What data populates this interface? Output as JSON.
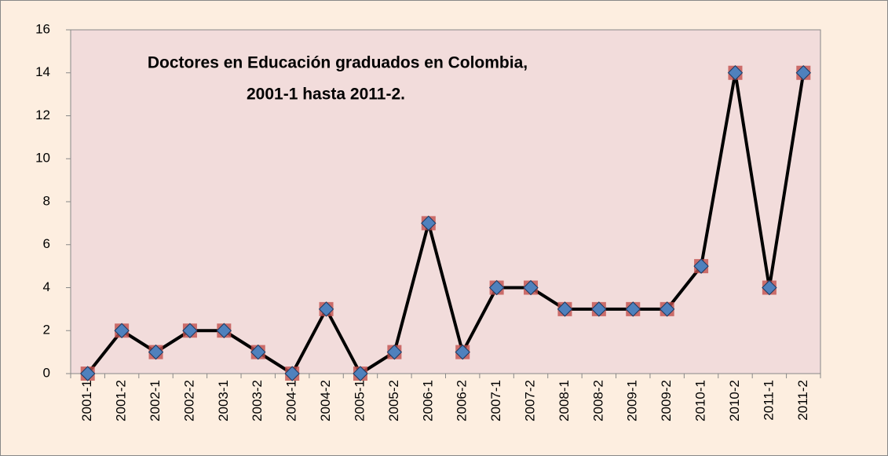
{
  "chart_data": {
    "type": "line",
    "title_lines": [
      "Doctores en Educación graduados en Colombia,",
      "2001-1 hasta 2011-2."
    ],
    "categories": [
      "2001-1",
      "2001-2",
      "2002-1",
      "2002-2",
      "2003-1",
      "2003-2",
      "2004-1",
      "2004-2",
      "2005-1",
      "2005-2",
      "2006-1",
      "2006-2",
      "2007-1",
      "2007-2",
      "2008-1",
      "2008-2",
      "2009-1",
      "2009-2",
      "2010-1",
      "2010-2",
      "2011-1",
      "2011-2"
    ],
    "values": [
      0,
      2,
      1,
      2,
      2,
      1,
      0,
      3,
      0,
      1,
      7,
      1,
      4,
      4,
      3,
      3,
      3,
      3,
      5,
      14,
      4,
      14
    ],
    "color": "#000000",
    "marker_color": "#4f81bd",
    "marker_back_color": "#c0504d",
    "ylim": [
      0,
      16
    ],
    "yticks": [
      0,
      2,
      4,
      6,
      8,
      10,
      12,
      14,
      16
    ],
    "grid": false
  }
}
